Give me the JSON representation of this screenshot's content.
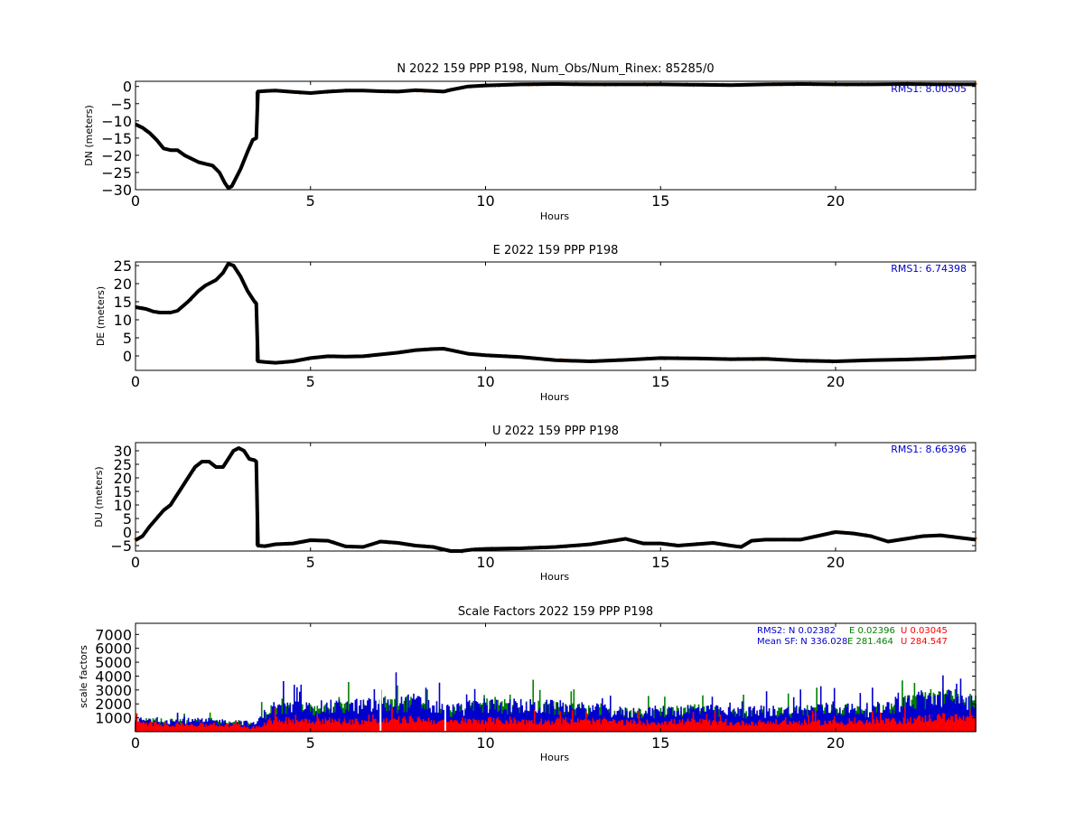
{
  "colors": {
    "black": "#000000",
    "orange": "#ff7f0e",
    "blue": "#0000cc",
    "green": "#008000",
    "red": "#ff0000",
    "legend_blue": "#0000cc",
    "legend_green": "#008000",
    "legend_red": "#ff0000"
  },
  "chart_data": [
    {
      "type": "scatter",
      "title": "N 2022 159 PPP  P198, Num_Obs/Num_Rinex: 85285/0",
      "xlabel": "Hours",
      "ylabel": "DN (meters)",
      "xlim": [
        0,
        24
      ],
      "ylim": [
        -30,
        1.5
      ],
      "xticks": [
        0,
        5,
        10,
        15,
        20
      ],
      "yticks": [
        0,
        -5,
        -10,
        -15,
        -20,
        -25,
        -30
      ],
      "annotation": "RMS1:  8.00505",
      "series": [
        {
          "x": [
            0,
            0.2,
            0.4,
            0.6,
            0.8,
            1.0,
            1.2,
            1.4,
            1.6,
            1.8,
            2.0,
            2.2,
            2.4,
            2.55,
            2.65,
            2.75,
            2.9,
            3.0,
            3.2,
            3.35,
            3.45,
            3.5,
            3.7,
            4.0,
            4.5,
            5.0,
            5.5,
            6.0,
            6.5,
            7.0,
            7.5,
            8.0,
            8.5,
            8.8,
            9.0,
            9.5,
            10.0,
            11.0,
            12.0,
            13.0,
            14.0,
            15.0,
            16.0,
            17.0,
            18.0,
            19.0,
            20.0,
            21.0,
            22.0,
            23.0,
            24.0
          ],
          "y": [
            -11,
            -12,
            -13.5,
            -15.5,
            -18,
            -18.5,
            -18.5,
            -20,
            -21,
            -22,
            -22.5,
            -23,
            -25,
            -28,
            -29.5,
            -29,
            -26,
            -24,
            -19,
            -15.5,
            -15,
            -1.5,
            -1.3,
            -1.2,
            -1.6,
            -1.9,
            -1.5,
            -1.2,
            -1.2,
            -1.4,
            -1.5,
            -1.1,
            -1.3,
            -1.5,
            -1.0,
            0.0,
            0.3,
            0.6,
            0.7,
            0.6,
            0.6,
            0.6,
            0.5,
            0.4,
            0.6,
            0.7,
            0.6,
            0.6,
            0.7,
            0.6,
            0.6
          ]
        }
      ]
    },
    {
      "type": "scatter",
      "title": "E 2022 159 PPP  P198",
      "xlabel": "Hours",
      "ylabel": "DE (meters)",
      "xlim": [
        0,
        24
      ],
      "ylim": [
        -4,
        26
      ],
      "xticks": [
        0,
        5,
        10,
        15,
        20
      ],
      "yticks": [
        25,
        20,
        15,
        10,
        5,
        0
      ],
      "annotation": "RMS1:  6.74398",
      "series": [
        {
          "x": [
            0,
            0.3,
            0.5,
            0.7,
            1.0,
            1.2,
            1.5,
            1.8,
            2.0,
            2.3,
            2.5,
            2.65,
            2.8,
            3.0,
            3.2,
            3.4,
            3.45,
            3.5,
            3.7,
            4.0,
            4.5,
            5.0,
            5.5,
            6.0,
            6.5,
            7.0,
            7.5,
            8.0,
            8.5,
            8.8,
            9.0,
            9.5,
            10.0,
            11.0,
            12.0,
            13.0,
            14.0,
            15.0,
            16.0,
            17.0,
            18.0,
            19.0,
            20.0,
            21.0,
            22.0,
            23.0,
            24.0
          ],
          "y": [
            13.5,
            13,
            12.3,
            12,
            12,
            12.5,
            15,
            18,
            19.5,
            21,
            23,
            25.5,
            25,
            22,
            18,
            15,
            14.5,
            -1.5,
            -1.7,
            -1.9,
            -1.5,
            -0.6,
            -0.1,
            -0.2,
            -0.1,
            0.4,
            0.9,
            1.6,
            1.9,
            2.0,
            1.6,
            0.6,
            0.2,
            -0.3,
            -1.2,
            -1.5,
            -1.1,
            -0.6,
            -0.7,
            -0.9,
            -0.8,
            -1.3,
            -1.5,
            -1.2,
            -1.0,
            -0.7,
            -0.2
          ]
        }
      ]
    },
    {
      "type": "scatter",
      "title": "U 2022 159 PPP  P198",
      "xlabel": "Hours",
      "ylabel": "DU (meters)",
      "xlim": [
        0,
        24
      ],
      "ylim": [
        -7,
        33
      ],
      "xticks": [
        0,
        5,
        10,
        15,
        20
      ],
      "yticks": [
        30,
        25,
        20,
        15,
        10,
        5,
        0,
        -5
      ],
      "annotation": "RMS1:  8.66396",
      "series": [
        {
          "x": [
            0,
            0.2,
            0.4,
            0.6,
            0.8,
            1.0,
            1.1,
            1.3,
            1.5,
            1.7,
            1.9,
            2.1,
            2.3,
            2.5,
            2.6,
            2.8,
            2.95,
            3.1,
            3.25,
            3.4,
            3.45,
            3.5,
            3.7,
            4.0,
            4.5,
            5.0,
            5.5,
            6.0,
            6.5,
            7.0,
            7.5,
            8.0,
            8.5,
            9.0,
            9.3,
            9.6,
            10.0,
            11.0,
            12.0,
            13.0,
            14.0,
            14.5,
            15.0,
            15.5,
            16.0,
            16.5,
            17.0,
            17.3,
            17.6,
            18.0,
            19.0,
            20.0,
            20.5,
            21.0,
            21.5,
            22.0,
            22.5,
            23.0,
            23.5,
            24.0
          ],
          "y": [
            -3,
            -1.5,
            2,
            5,
            8,
            10,
            12,
            16,
            20,
            24,
            26,
            26,
            24,
            24,
            26,
            30,
            31,
            30,
            27,
            26.5,
            26,
            -5,
            -5.2,
            -4.5,
            -4.2,
            -3,
            -3.2,
            -5.3,
            -5.5,
            -3.5,
            -4,
            -5,
            -5.5,
            -7,
            -7.5,
            -6.5,
            -6.2,
            -6,
            -5.5,
            -4.5,
            -2.5,
            -4.2,
            -4.2,
            -5,
            -4.5,
            -4,
            -5,
            -5.5,
            -3.2,
            -2.8,
            -2.8,
            0,
            -0.5,
            -1.5,
            -3.5,
            -2.5,
            -1.5,
            -1.2,
            -2,
            -2.8
          ]
        }
      ]
    },
    {
      "type": "scatter",
      "title": "Scale Factors 2022 159 PPP  P198",
      "xlabel": "Hours",
      "ylabel": "scale factors",
      "xlim": [
        0,
        24
      ],
      "ylim": [
        0,
        7800
      ],
      "xticks": [
        0,
        5,
        10,
        15,
        20
      ],
      "yticks": [
        1000,
        2000,
        3000,
        4000,
        5000,
        6000,
        7000
      ],
      "legend_rms2": {
        "prefix": "RMS2: N  0.02382",
        "e": "E  0.02396",
        "u": "U  0.03045"
      },
      "legend_mean": {
        "prefix": "Mean SF: N 336.028",
        "e": "E 281.464",
        "u": "U 284.547"
      },
      "series": [
        {
          "name": "N",
          "x": [
            0,
            1,
            2,
            3,
            3.4,
            3.8,
            4,
            5,
            6,
            7,
            8,
            9,
            10,
            11,
            12,
            13,
            14,
            15,
            16,
            17,
            18,
            19,
            20,
            21,
            22,
            23,
            24
          ],
          "y": [
            1100,
            1000,
            1000,
            900,
            700,
            2000,
            2300,
            2200,
            2400,
            2500,
            2800,
            2000,
            2500,
            2400,
            2300,
            2100,
            1800,
            1900,
            2100,
            1800,
            1900,
            2000,
            2200,
            2000,
            2800,
            3200,
            2800
          ]
        },
        {
          "name": "E",
          "x": [
            0,
            1,
            2,
            3,
            3.4,
            3.8,
            4,
            5,
            6,
            7,
            8,
            9,
            10,
            11,
            12,
            13,
            14,
            15,
            16,
            17,
            18,
            19,
            20,
            21,
            22,
            23,
            24
          ],
          "y": [
            1000,
            950,
            900,
            850,
            600,
            1900,
            2200,
            2100,
            2300,
            2400,
            2700,
            1900,
            2400,
            2300,
            2200,
            2000,
            1700,
            1800,
            2000,
            1700,
            1800,
            1900,
            2100,
            1900,
            2700,
            3100,
            2700
          ]
        },
        {
          "name": "U",
          "x": [
            0,
            1,
            2,
            3,
            3.4,
            3.8,
            4,
            5,
            6,
            7,
            8,
            9,
            10,
            11,
            12,
            13,
            14,
            15,
            16,
            17,
            18,
            19,
            20,
            21,
            22,
            23,
            24
          ],
          "y": [
            800,
            700,
            650,
            600,
            300,
            1000,
            1100,
            1100,
            1000,
            1000,
            1200,
            900,
            1100,
            1000,
            1000,
            1000,
            900,
            900,
            1000,
            800,
            900,
            900,
            900,
            900,
            1100,
            1400,
            1200
          ]
        }
      ]
    }
  ]
}
